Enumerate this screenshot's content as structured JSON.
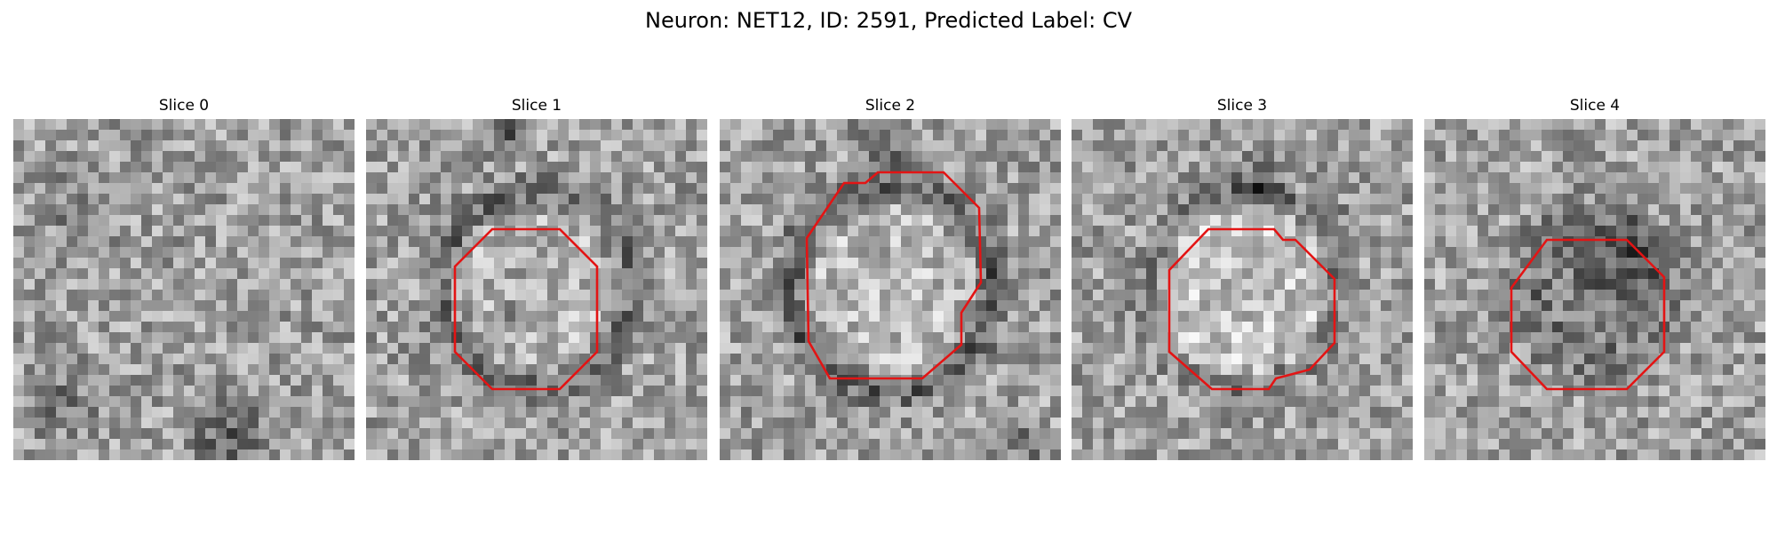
{
  "figure": {
    "title": "Neuron: NET12, ID: 2591, Predicted Label: CV"
  },
  "panels": [
    {
      "title": "Slice 0",
      "has_contour": false
    },
    {
      "title": "Slice 1",
      "has_contour": true
    },
    {
      "title": "Slice 2",
      "has_contour": true
    },
    {
      "title": "Slice 3",
      "has_contour": true
    },
    {
      "title": "Slice 4",
      "has_contour": true
    }
  ],
  "colors": {
    "contour": "#e31414",
    "background": "#ffffff"
  }
}
